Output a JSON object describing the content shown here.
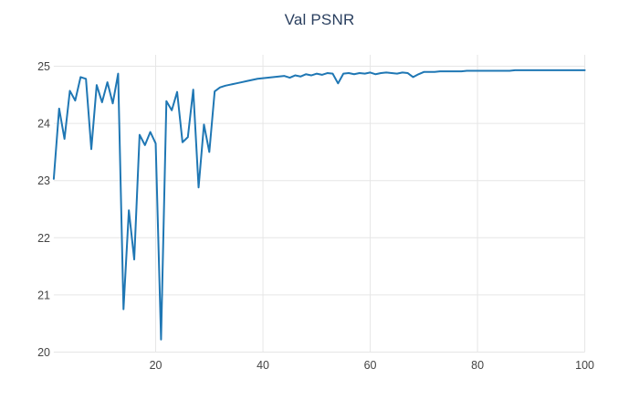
{
  "chart": {
    "title": "Val PSNR"
  },
  "chart_data": {
    "type": "line",
    "title": "Val PSNR",
    "xlabel": "",
    "ylabel": "",
    "legend": "none",
    "grid": true,
    "line_color": "#1f77b4",
    "grid_color": "#e6e6e6",
    "tick_text_color": "#444444",
    "title_text_color": "#2a3f5f",
    "background_color": "#ffffff",
    "xlim": [
      1,
      100
    ],
    "ylim": [
      20,
      25.2
    ],
    "xticks": [
      20,
      40,
      60,
      80,
      100
    ],
    "yticks": [
      20,
      21,
      22,
      23,
      24,
      25
    ],
    "x": [
      1,
      2,
      3,
      4,
      5,
      6,
      7,
      8,
      9,
      10,
      11,
      12,
      13,
      14,
      15,
      16,
      17,
      18,
      19,
      20,
      21,
      22,
      23,
      24,
      25,
      26,
      27,
      28,
      29,
      30,
      31,
      32,
      33,
      34,
      35,
      36,
      37,
      38,
      39,
      40,
      41,
      42,
      43,
      44,
      45,
      46,
      47,
      48,
      49,
      50,
      51,
      52,
      53,
      54,
      55,
      56,
      57,
      58,
      59,
      60,
      61,
      62,
      63,
      64,
      65,
      66,
      67,
      68,
      69,
      70,
      71,
      72,
      73,
      74,
      75,
      76,
      77,
      78,
      79,
      80,
      81,
      82,
      83,
      84,
      85,
      86,
      87,
      88,
      89,
      90,
      91,
      92,
      93,
      94,
      95,
      96,
      97,
      98,
      99,
      100
    ],
    "values": [
      23.03,
      24.26,
      23.73,
      24.57,
      24.4,
      24.81,
      24.78,
      23.55,
      24.67,
      24.37,
      24.72,
      24.35,
      24.87,
      20.75,
      22.48,
      21.62,
      23.8,
      23.62,
      23.85,
      23.65,
      20.22,
      24.39,
      24.23,
      24.55,
      23.67,
      23.76,
      24.59,
      22.88,
      23.98,
      23.5,
      24.56,
      24.63,
      24.66,
      24.68,
      24.7,
      24.72,
      24.74,
      24.76,
      24.78,
      24.79,
      24.8,
      24.81,
      24.82,
      24.83,
      24.8,
      24.84,
      24.82,
      24.86,
      24.84,
      24.87,
      24.85,
      24.88,
      24.87,
      24.7,
      24.87,
      24.88,
      24.86,
      24.88,
      24.87,
      24.89,
      24.86,
      24.88,
      24.89,
      24.88,
      24.87,
      24.89,
      24.88,
      24.81,
      24.86,
      24.9,
      24.9,
      24.9,
      24.91,
      24.91,
      24.91,
      24.91,
      24.91,
      24.92,
      24.92,
      24.92,
      24.92,
      24.92,
      24.92,
      24.92,
      24.92,
      24.92,
      24.93,
      24.93,
      24.93,
      24.93,
      24.93,
      24.93,
      24.93,
      24.93,
      24.93,
      24.93,
      24.93,
      24.93,
      24.93,
      24.93
    ]
  }
}
